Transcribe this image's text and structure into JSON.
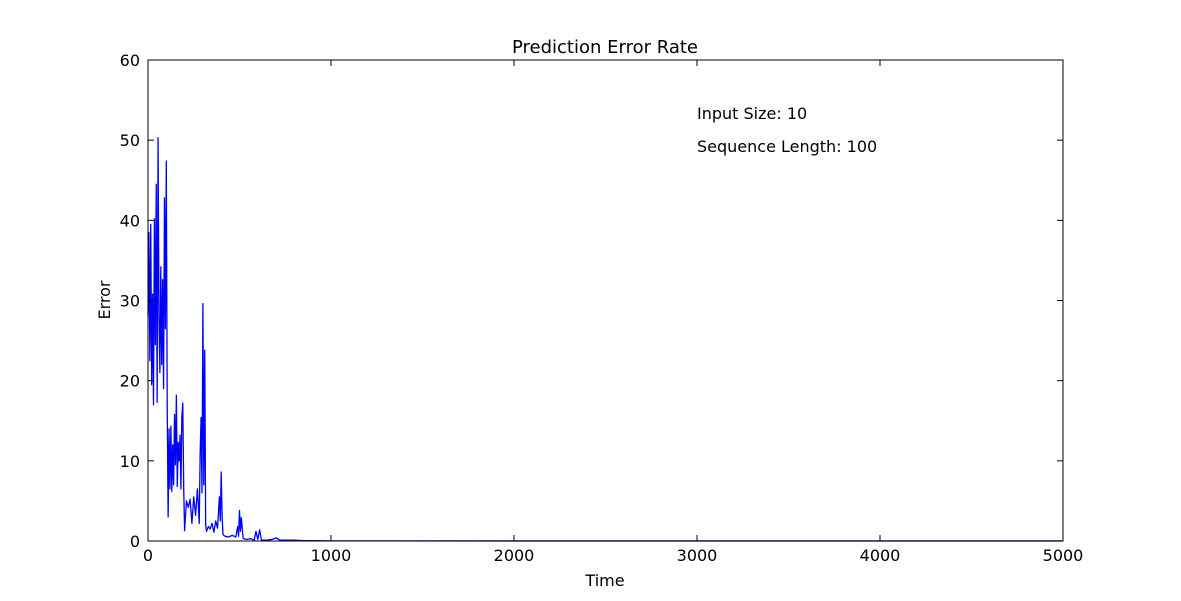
{
  "chart_data": {
    "type": "line",
    "title": "Prediction Error Rate",
    "xlabel": "Time",
    "ylabel": "Error",
    "xlim": [
      0,
      5000
    ],
    "ylim": [
      0,
      60
    ],
    "xticks": [
      0,
      1000,
      2000,
      3000,
      4000,
      5000
    ],
    "yticks": [
      0,
      10,
      20,
      30,
      40,
      50,
      60
    ],
    "grid": false,
    "series": [
      {
        "color": "#0000ff",
        "x": [
          0,
          5,
          10,
          15,
          20,
          25,
          30,
          35,
          40,
          45,
          50,
          55,
          60,
          65,
          70,
          75,
          80,
          85,
          90,
          95,
          100,
          105,
          110,
          115,
          120,
          125,
          130,
          135,
          140,
          145,
          150,
          155,
          160,
          165,
          170,
          175,
          180,
          185,
          190,
          195,
          200,
          210,
          220,
          230,
          240,
          250,
          260,
          270,
          280,
          285,
          290,
          295,
          300,
          305,
          310,
          315,
          320,
          330,
          340,
          350,
          360,
          370,
          380,
          390,
          395,
          400,
          405,
          410,
          420,
          440,
          460,
          480,
          490,
          495,
          500,
          505,
          510,
          520,
          540,
          560,
          580,
          590,
          600,
          610,
          620,
          650,
          680,
          700,
          720,
          750,
          800,
          850,
          900,
          1000,
          2000,
          3000,
          4000,
          5000
        ],
        "y": [
          28,
          38.5,
          22.5,
          39.5,
          19.5,
          30.8,
          17,
          40.2,
          24.5,
          44.5,
          17.3,
          50.3,
          28,
          21,
          34.2,
          22,
          32.6,
          19,
          42.8,
          26.5,
          47.4,
          16.5,
          3,
          14,
          6.5,
          14.3,
          6.2,
          12,
          7,
          15.8,
          9.5,
          18.2,
          6.8,
          12.3,
          10,
          13.2,
          6.5,
          15.5,
          17.2,
          6.8,
          1.3,
          5,
          4.2,
          5.2,
          2.2,
          5.5,
          3.2,
          6.5,
          2.2,
          11,
          15.4,
          6,
          29.6,
          7,
          23.8,
          2,
          1.2,
          1.8,
          1.5,
          2.2,
          1.1,
          2.5,
          1.6,
          5.5,
          2.5,
          8.6,
          3,
          0.8,
          0.6,
          0.5,
          0.7,
          0.5,
          1.8,
          0.6,
          3.8,
          1.2,
          2.9,
          0.3,
          0.2,
          0.3,
          0.1,
          1.2,
          0.2,
          1.4,
          0.1,
          0.1,
          0.2,
          0.4,
          0.1,
          0.1,
          0.1,
          0.05,
          0.05,
          0.02,
          0.01,
          0.01,
          0.01,
          0.01
        ]
      }
    ],
    "annotations": [
      "Input Size: 10",
      "Sequence Length: 100"
    ]
  }
}
